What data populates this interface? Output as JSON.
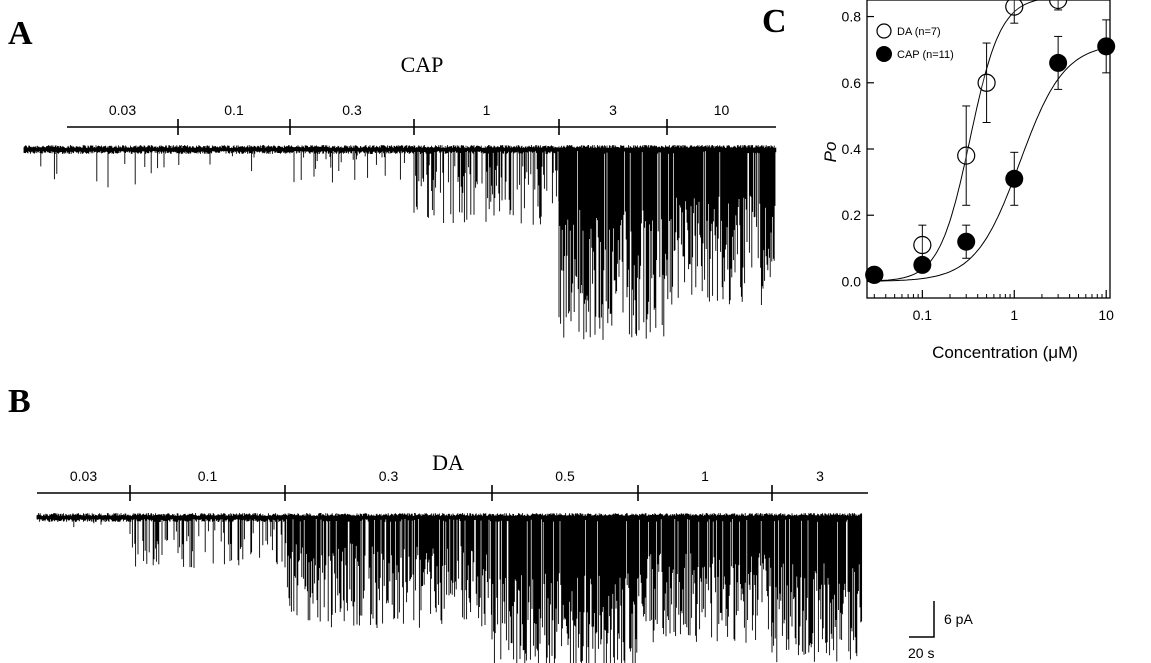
{
  "panels": {
    "A": {
      "letter": "A",
      "title": "CAP",
      "segments": [
        "0.03",
        "0.1",
        "0.3",
        "1",
        "3",
        "10"
      ]
    },
    "B": {
      "letter": "B",
      "title": "DA",
      "segments": [
        "0.03",
        "0.1",
        "0.3",
        "0.5",
        "1",
        "3"
      ]
    },
    "C": {
      "letter": "C"
    }
  },
  "scale_bar": {
    "current": "6 pA",
    "time": "20 s"
  },
  "chart_data": {
    "type": "scatter",
    "title": "",
    "xlabel": "Concentration (μM)",
    "ylabel": "Po",
    "x_scale": "log",
    "xlim": [
      0.03,
      10
    ],
    "ylim": [
      0,
      0.85
    ],
    "x_ticks": [
      "0.1",
      "1",
      "10"
    ],
    "y_ticks": [
      "0.0",
      "0.2",
      "0.4",
      "0.6",
      "0.8"
    ],
    "grid": false,
    "legend_position": "top-left",
    "series": [
      {
        "name": "DA (n=7)",
        "marker": "open-circle",
        "color": "#000000",
        "x": [
          0.03,
          0.1,
          0.3,
          0.5,
          1,
          3
        ],
        "y": [
          0.02,
          0.11,
          0.38,
          0.6,
          0.83,
          0.85
        ],
        "err": [
          0.0,
          0.06,
          0.15,
          0.12,
          0.05,
          0.03
        ]
      },
      {
        "name": "CAP (n=11)",
        "marker": "filled-circle",
        "color": "#000000",
        "x": [
          0.03,
          0.1,
          0.3,
          1,
          3,
          10
        ],
        "y": [
          0.02,
          0.05,
          0.12,
          0.31,
          0.66,
          0.71
        ],
        "err": [
          0.0,
          0.0,
          0.05,
          0.08,
          0.08,
          0.08
        ]
      }
    ]
  }
}
